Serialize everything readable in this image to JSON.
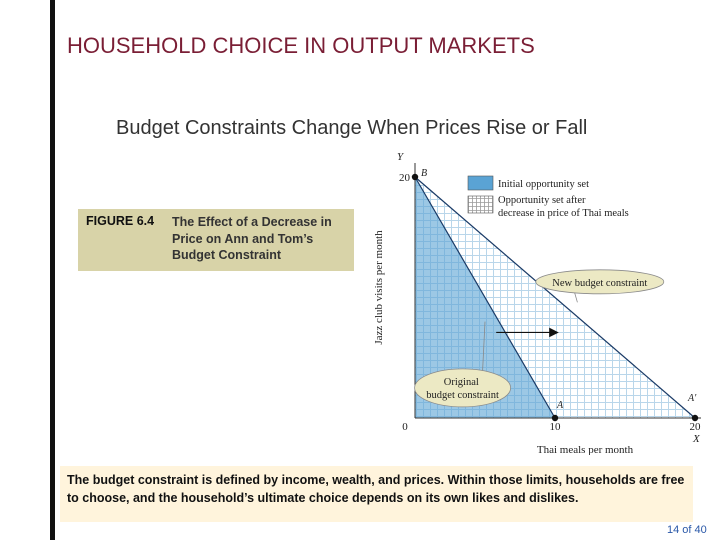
{
  "slide": {
    "title": "HOUSEHOLD CHOICE IN OUTPUT MARKETS",
    "subtitle": "Budget Constraints Change When Prices Rise or Fall",
    "footer_text": "The budget constraint is defined by income, wealth, and prices. Within those limits, households are free to choose, and the household’s ultimate choice depends on its own likes and dislikes.",
    "page_number": "14 of 40"
  },
  "figure": {
    "number": "FIGURE 6.4",
    "caption": "The Effect of a Decrease in Price on Ann and Tom’s Budget Constraint"
  },
  "colors": {
    "title": "#7a1e35",
    "initial_fill": "#5aa3d4",
    "grid_hatch": "#b9d6ea",
    "caption_bg": "#d8d3a8",
    "note_bg": "#fff4dc",
    "label_ellipse": "#ece9c4",
    "page_number": "#2a58a8"
  },
  "chart_data": {
    "type": "line",
    "xlabel": "Thai meals per month",
    "ylabel": "Jazz club visits per month",
    "x_axis_letter": "X",
    "y_axis_letter": "Y",
    "xlim": [
      0,
      20
    ],
    "ylim": [
      0,
      20
    ],
    "x_ticks": [
      "0",
      "10",
      "20"
    ],
    "y_ticks": [
      "20"
    ],
    "series": [
      {
        "name": "Original budget constraint",
        "x": [
          0,
          10
        ],
        "y": [
          20,
          0
        ]
      },
      {
        "name": "New budget constraint",
        "x": [
          0,
          20
        ],
        "y": [
          20,
          0
        ]
      }
    ],
    "points": [
      {
        "label": "B",
        "x": 0,
        "y": 20
      },
      {
        "label": "A",
        "x": 10,
        "y": 0
      },
      {
        "label": "A'",
        "x": 20,
        "y": 0
      }
    ],
    "legend": [
      {
        "label": "Initial opportunity set",
        "pattern": "solid"
      },
      {
        "label": "Opportunity set after decrease in price of Thai meals",
        "lines": [
          "Opportunity set after",
          "decrease in price of Thai meals"
        ],
        "pattern": "grid"
      }
    ],
    "legend_position": "top-right",
    "shift_arrow": "right"
  }
}
